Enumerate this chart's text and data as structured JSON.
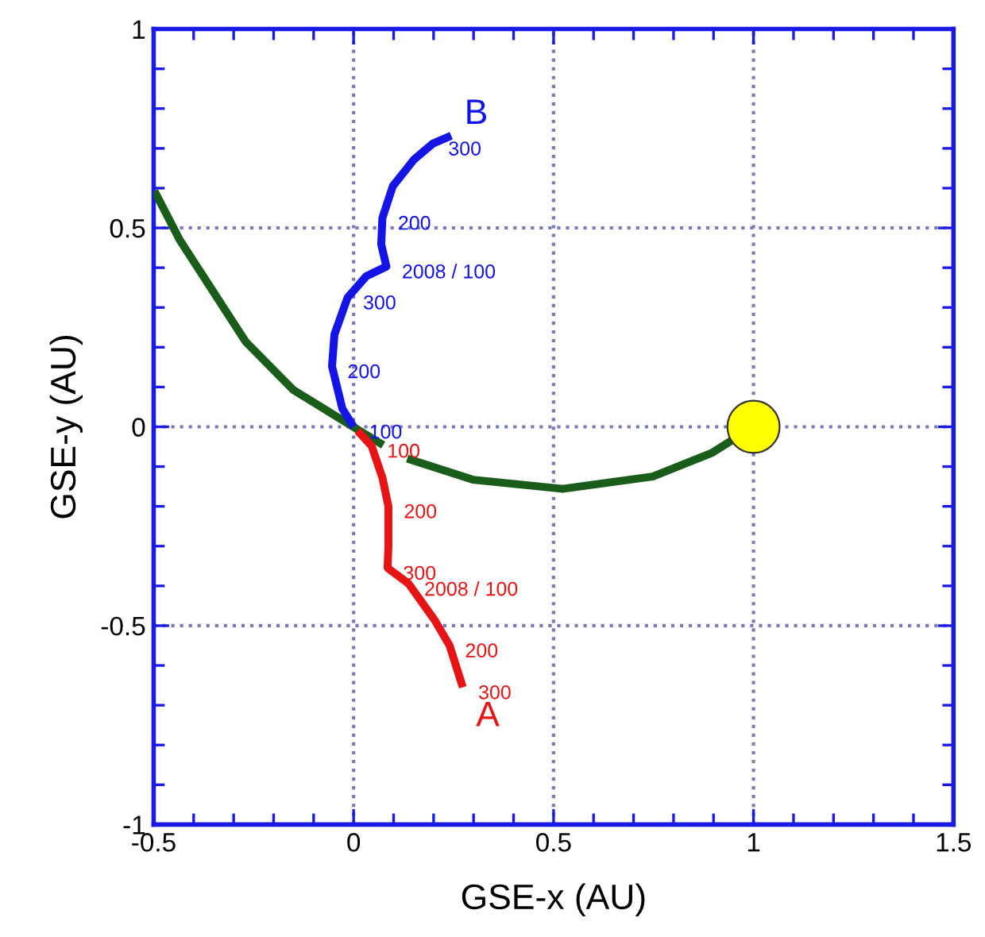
{
  "chart_data": {
    "type": "line",
    "xlabel": "GSE-x (AU)",
    "ylabel": "GSE-y (AU)",
    "xlim": [
      -0.5,
      1.5
    ],
    "xticks": [
      {
        "value": -0.5,
        "label": "-0.5"
      },
      0,
      0.5,
      1,
      1.5
    ],
    "ylim": [
      -1,
      1
    ],
    "yticks": [
      -1,
      {
        "value": -0.5,
        "label": "-0.5"
      },
      0,
      0.5,
      1
    ],
    "grid": true,
    "series": [
      {
        "color": "#1a5c1a",
        "x": [
          -0.498,
          -0.435,
          -0.27,
          -0.151,
          0.007,
          0.074,
          null,
          0.134,
          0.298,
          0.523,
          0.748,
          0.897,
          0.957
        ],
        "values": [
          0.593,
          0.47,
          0.214,
          0.093,
          -0.005,
          -0.046,
          null,
          -0.08,
          -0.133,
          -0.156,
          -0.125,
          -0.065,
          -0.027
        ]
      },
      {
        "name": "B",
        "color": "#1414e6",
        "x": [
          0,
          -0.028,
          -0.054,
          -0.048,
          -0.015,
          0.032,
          0.082,
          0.069,
          0.072,
          0.098,
          0.151,
          0.198,
          0.244
        ],
        "values": [
          0,
          0.045,
          0.152,
          0.232,
          0.325,
          0.379,
          0.403,
          0.459,
          0.525,
          0.605,
          0.672,
          0.712,
          0.732
        ]
      },
      {
        "name": "A",
        "color": "#e61414",
        "x": [
          0.01,
          0.045,
          0.072,
          0.087,
          0.087,
          0.085,
          0.138,
          0.204,
          0.24,
          0.273
        ],
        "values": [
          -0.01,
          -0.048,
          -0.128,
          -0.2,
          -0.3,
          -0.355,
          -0.395,
          -0.488,
          -0.55,
          -0.655
        ]
      },
      {
        "type": "scatter",
        "color": "#ffff00",
        "marker": "circle",
        "x": [
          1
        ],
        "values": [
          0
        ]
      }
    ],
    "annotations": [
      {
        "text": "300",
        "x": 0.198,
        "y": 0.712
      },
      {
        "text": "200",
        "x": 0.072,
        "y": 0.525
      },
      {
        "text": "2008 / 100",
        "x": 0.082,
        "y": 0.403
      },
      {
        "text": "300",
        "x": -0.015,
        "y": 0.325
      },
      {
        "text": "200",
        "x": -0.054,
        "y": 0.152
      },
      {
        "text": "100",
        "x": 0,
        "y": 0
      },
      {
        "text": "100",
        "x": 0.045,
        "y": -0.048
      },
      {
        "text": "200",
        "x": 0.087,
        "y": -0.2
      },
      {
        "text": "300",
        "x": 0.085,
        "y": -0.355
      },
      {
        "text": "2008 / 100",
        "x": 0.138,
        "y": -0.395
      },
      {
        "text": "200",
        "x": 0.24,
        "y": -0.55
      },
      {
        "text": "300",
        "x": 0.273,
        "y": -0.655
      }
    ]
  }
}
